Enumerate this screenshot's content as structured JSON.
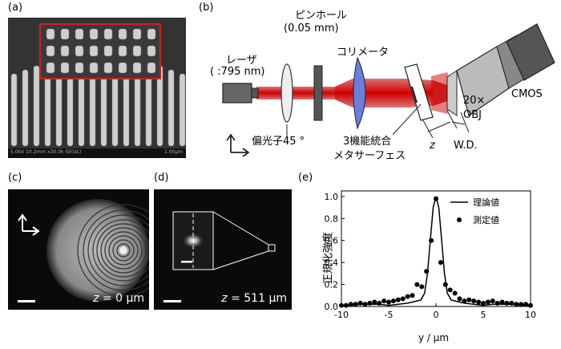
{
  "panels": {
    "a": "(a)",
    "b": "(b)",
    "c": "(c)",
    "d": "(d)",
    "e": "(e)"
  },
  "sem": {
    "info_left": "5.0kV 10.2mm x30.0k SE(UL)",
    "info_right": "1.00µm"
  },
  "setup": {
    "laser_label": "レーザ",
    "laser_wavelength": "( :795 nm)",
    "polarizer": "偏光子45 °",
    "pinhole_label": "ピンホール",
    "pinhole_size": "(0.05 mm)",
    "collimator": "コリメータ",
    "metasurface_line1": "3機能統合",
    "metasurface_line2": "メタサーフェス",
    "z_label": "z",
    "wd_label": "W.D.",
    "objective_line1": "20×",
    "objective_line2": "OBJ",
    "camera": "CMOS"
  },
  "images": {
    "c_caption_var": "z",
    "c_caption_val": " = 0 µm",
    "d_caption_var": "z",
    "d_caption_val": " = 511 µm"
  },
  "chart_data": {
    "type": "line",
    "xlabel": "y / μm",
    "ylabel": "正規化強度",
    "xlim": [
      -10,
      10
    ],
    "ylim": [
      0,
      1.05
    ],
    "xticks": [
      "-10",
      "-5",
      "0",
      "5",
      "10"
    ],
    "yticks": [
      "0.0",
      "0.2",
      "0.4",
      "0.6",
      "0.8",
      "1.0"
    ],
    "legend": "top-right",
    "series": [
      {
        "name": "理論値",
        "style": "line",
        "x": [
          -10,
          -9,
          -8,
          -7,
          -6,
          -5,
          -4,
          -3,
          -2.5,
          -2,
          -1.6,
          -1.2,
          -0.9,
          -0.6,
          -0.3,
          0,
          0.3,
          0.6,
          0.9,
          1.2,
          1.6,
          2,
          2.5,
          3,
          4,
          5,
          6,
          7,
          8,
          9,
          10
        ],
        "y": [
          0.01,
          0.01,
          0.02,
          0.02,
          0.02,
          0.01,
          0.02,
          0.03,
          0.04,
          0.05,
          0.06,
          0.12,
          0.3,
          0.6,
          0.9,
          1.0,
          0.9,
          0.6,
          0.3,
          0.12,
          0.06,
          0.05,
          0.04,
          0.03,
          0.02,
          0.01,
          0.02,
          0.02,
          0.02,
          0.01,
          0.01
        ]
      },
      {
        "name": "測定値",
        "style": "marker",
        "x": [
          -10,
          -9.5,
          -9,
          -8.5,
          -8,
          -7.5,
          -7,
          -6.5,
          -6,
          -5.5,
          -5,
          -4.5,
          -4,
          -3.5,
          -3,
          -2.5,
          -2,
          -1.5,
          -1,
          -0.5,
          0,
          0.5,
          1,
          1.5,
          2,
          2.5,
          3,
          3.5,
          4,
          4.5,
          5,
          5.5,
          6,
          6.5,
          7,
          7.5,
          8,
          8.5,
          9,
          9.5,
          10
        ],
        "y": [
          0.01,
          0.01,
          0.02,
          0.02,
          0.03,
          0.02,
          0.03,
          0.04,
          0.03,
          0.05,
          0.04,
          0.05,
          0.06,
          0.07,
          0.09,
          0.1,
          0.2,
          0.18,
          0.32,
          0.6,
          0.98,
          0.4,
          0.2,
          0.15,
          0.12,
          0.07,
          0.05,
          0.06,
          0.05,
          0.04,
          0.03,
          0.04,
          0.05,
          0.03,
          0.04,
          0.03,
          0.03,
          0.02,
          0.02,
          0.02,
          0.01
        ]
      }
    ]
  }
}
